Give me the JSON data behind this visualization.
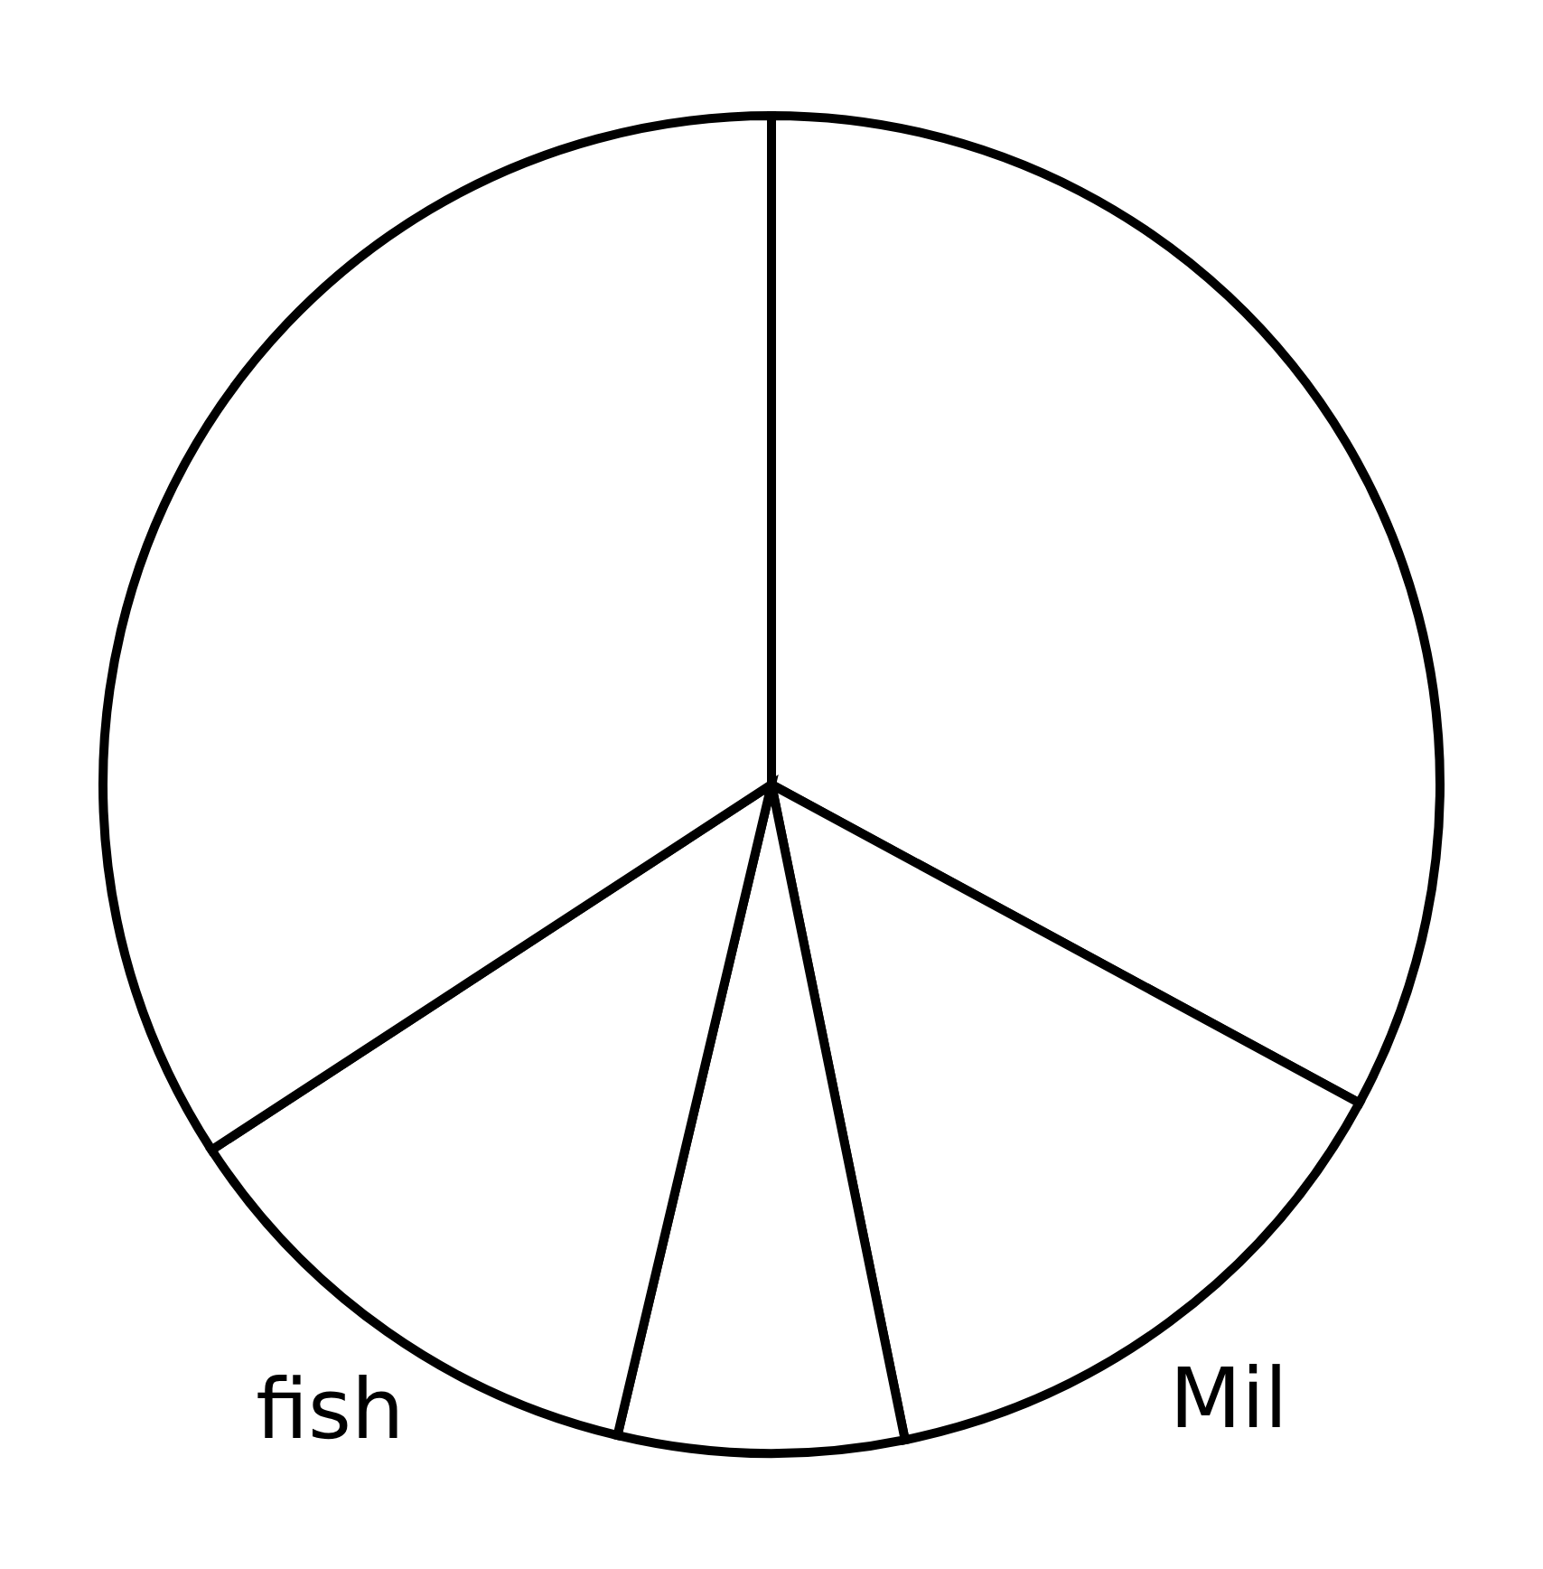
{
  "chart_data": {
    "type": "pie",
    "categories": [
      null,
      "Mil",
      null,
      "fish",
      null
    ],
    "values": [
      32.9,
      13.9,
      6.9,
      12.1,
      34.2
    ],
    "colors": [
      "#ffffff",
      "#ffffff",
      "#ffffff",
      "#ffffff",
      "#ffffff"
    ]
  }
}
